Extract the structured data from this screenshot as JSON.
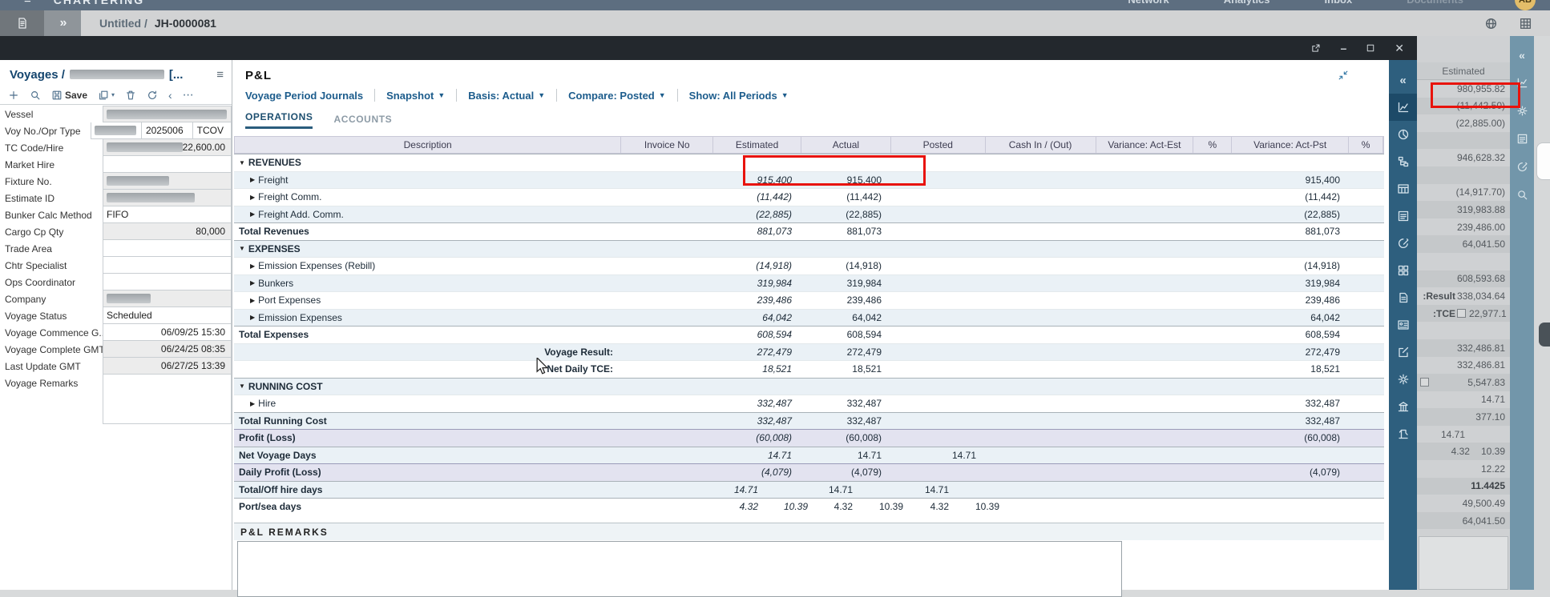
{
  "app": {
    "title": "CHARTERING",
    "menu": [
      {
        "label": "Network",
        "dim": false
      },
      {
        "label": "Analytics",
        "dim": false
      },
      {
        "label": "Inbox",
        "dim": false
      },
      {
        "label": "Documents",
        "dim": true
      }
    ],
    "avatar": "AB"
  },
  "tabbar": {
    "breadcrumb_left": "Untitled /",
    "breadcrumb_right": "JH-0000081"
  },
  "modal_controls": [
    "open-in-new",
    "minimize",
    "maximize",
    "close"
  ],
  "voyages": {
    "title": "Voyages /",
    "title_suffix": "[...",
    "save_label": "Save",
    "toolbar_icons": [
      "add",
      "search",
      "save",
      "copy",
      "delete",
      "refresh",
      "back",
      "more"
    ],
    "fields": [
      {
        "label": "Vessel",
        "gray": true,
        "parts": [
          {
            "mask": 150
          }
        ]
      },
      {
        "label": "Voy No./Opr Type",
        "gray": false,
        "parts": [
          {
            "mask": 52
          },
          {
            "text": "2025006",
            "box": true
          },
          {
            "text": "TCOV",
            "box": true
          }
        ]
      },
      {
        "label": "TC Code/Hire",
        "gray": true,
        "parts": [
          {
            "mask": 95
          },
          {
            "text": "22,600.00",
            "right": true
          }
        ]
      },
      {
        "label": "Market Hire",
        "gray": false,
        "parts": []
      },
      {
        "label": "Fixture No.",
        "gray": true,
        "parts": [
          {
            "mask": 78
          }
        ]
      },
      {
        "label": "Estimate ID",
        "gray": true,
        "parts": [
          {
            "mask": 110
          }
        ]
      },
      {
        "label": "Bunker Calc Method",
        "gray": false,
        "parts": [
          {
            "text": "FIFO"
          }
        ]
      },
      {
        "label": "Cargo Cp Qty",
        "gray": true,
        "parts": [
          {
            "text": "80,000",
            "right": true
          }
        ]
      },
      {
        "label": "Trade Area",
        "gray": false,
        "parts": []
      },
      {
        "label": "Chtr Specialist",
        "gray": false,
        "parts": []
      },
      {
        "label": "Ops Coordinator",
        "gray": false,
        "parts": []
      },
      {
        "label": "Company",
        "gray": true,
        "parts": [
          {
            "mask": 55
          }
        ]
      },
      {
        "label": "Voyage Status",
        "gray": false,
        "parts": [
          {
            "text": "Scheduled"
          }
        ]
      },
      {
        "label": "Voyage Commence G...",
        "gray": false,
        "parts": [
          {
            "text": "06/09/25 15:30",
            "right": true
          }
        ]
      },
      {
        "label": "Voyage Complete GMT",
        "gray": true,
        "parts": [
          {
            "text": "06/24/25 08:35",
            "right": true
          }
        ]
      },
      {
        "label": "Last Update GMT",
        "gray": true,
        "parts": [
          {
            "text": "06/27/25 13:39",
            "right": true
          }
        ]
      },
      {
        "label": "Voyage Remarks",
        "gray": false,
        "tall": true,
        "parts": []
      }
    ]
  },
  "pnl": {
    "title": "P&L",
    "menu": [
      {
        "label": "Voyage Period Journals",
        "caret": false
      },
      {
        "label": "Snapshot",
        "caret": true
      },
      {
        "label": "Basis: Actual",
        "caret": true
      },
      {
        "label": "Compare: Posted",
        "caret": true
      },
      {
        "label": "Show: All Periods",
        "caret": true
      }
    ],
    "tabs": [
      "OPERATIONS",
      "ACCOUNTS"
    ],
    "active_tab": "OPERATIONS",
    "columns": [
      "Description",
      "Invoice No",
      "Estimated",
      "Actual",
      "Posted",
      "Cash In / (Out)",
      "Variance: Act-Est",
      "%",
      "Variance: Act-Pst",
      "%"
    ],
    "rows": [
      {
        "type": "section",
        "label": "REVENUES",
        "shade": false
      },
      {
        "type": "item",
        "label": "Freight",
        "est": "915,400",
        "act": "915,400",
        "var_pst": "915,400",
        "shade": true
      },
      {
        "type": "item",
        "label": "Freight Comm.",
        "est": "(11,442)",
        "act": "(11,442)",
        "var_pst": "(11,442)",
        "shade": false
      },
      {
        "type": "item",
        "label": "Freight Add. Comm.",
        "est": "(22,885)",
        "act": "(22,885)",
        "var_pst": "(22,885)",
        "shade": true
      },
      {
        "type": "total",
        "label": "Total Revenues",
        "est": "881,073",
        "act": "881,073",
        "var_pst": "881,073",
        "shade": false
      },
      {
        "type": "section",
        "label": "EXPENSES",
        "shade": true
      },
      {
        "type": "item",
        "label": "Emission Expenses (Rebill)",
        "est": "(14,918)",
        "act": "(14,918)",
        "var_pst": "(14,918)",
        "shade": false
      },
      {
        "type": "item",
        "label": "Bunkers",
        "est": "319,984",
        "act": "319,984",
        "var_pst": "319,984",
        "shade": true
      },
      {
        "type": "item",
        "label": "Port Expenses",
        "est": "239,486",
        "act": "239,486",
        "var_pst": "239,486",
        "shade": false
      },
      {
        "type": "item",
        "label": "Emission Expenses",
        "est": "64,042",
        "act": "64,042",
        "var_pst": "64,042",
        "shade": true
      },
      {
        "type": "total",
        "label": "Total Expenses",
        "est": "608,594",
        "act": "608,594",
        "var_pst": "608,594",
        "shade": false
      },
      {
        "type": "summary",
        "label": "Voyage Result:",
        "est": "272,479",
        "act": "272,479",
        "var_pst": "272,479",
        "shade": true
      },
      {
        "type": "summary",
        "label": "Net Daily TCE:",
        "est": "18,521",
        "act": "18,521",
        "var_pst": "18,521",
        "shade": false
      },
      {
        "type": "section",
        "label": "RUNNING COST",
        "shade": true
      },
      {
        "type": "item",
        "label": "Hire",
        "est": "332,487",
        "act": "332,487",
        "var_pst": "332,487",
        "shade": false
      },
      {
        "type": "total",
        "label": "Total Running Cost",
        "est": "332,487",
        "act": "332,487",
        "var_pst": "332,487",
        "shade": true
      },
      {
        "type": "profit",
        "label": "Profit (Loss)",
        "est": "(60,008)",
        "act": "(60,008)",
        "var_pst": "(60,008)"
      },
      {
        "type": "total",
        "label": "Net Voyage Days",
        "est": "14.71",
        "act": "14.71",
        "posted": "14.71",
        "shade": true
      },
      {
        "type": "profit",
        "label": "Daily Profit (Loss)",
        "est": "(4,079)",
        "act": "(4,079)",
        "var_pst": "(4,079)"
      },
      {
        "type": "days",
        "label": "Total/Off hire days",
        "cells": [
          "14.71",
          "",
          "14.71",
          "",
          "14.71",
          ""
        ],
        "shade": true
      },
      {
        "type": "days",
        "label": "Port/sea days",
        "cells": [
          "4.32",
          "10.39",
          "4.32",
          "10.39",
          "4.32",
          "10.39"
        ],
        "shade": false
      }
    ],
    "remarks_label": "P&L REMARKS"
  },
  "modal_strip_icons": [
    "chevrons-left",
    "chart",
    "pie",
    "hierarchy",
    "table",
    "checklist",
    "edit-circle",
    "grid",
    "document",
    "person-card",
    "compose",
    "gear",
    "bank",
    "crane"
  ],
  "modal_strip_active": "chart",
  "right_strip_icons": [
    "chevrons-left",
    "chart",
    "gear",
    "checklist",
    "edit-circle",
    "search"
  ],
  "right_panel": {
    "header": "Estimated",
    "rows": [
      {
        "v": "980,955.82"
      },
      {
        "v": "(11,442.50)"
      },
      {
        "v": "(22,885.00)"
      },
      {},
      {
        "v": "946,628.32"
      },
      {},
      {
        "v": "(14,917.70)"
      },
      {
        "v": "319,983.88"
      },
      {
        "v": "239,486.00"
      },
      {
        "v": "64,041.50"
      },
      {},
      {
        "v": "608,593.68"
      },
      {
        "label": "Result:",
        "v": "338,034.64"
      },
      {
        "label": "TCE:",
        "cb": true,
        "v": "22,977.1"
      },
      {},
      {
        "v": "332,486.81"
      },
      {
        "v": "332,486.81"
      },
      {
        "cb": true,
        "v": "5,547.83"
      },
      {
        "v": "14.71"
      },
      {
        "v": "377.10"
      },
      {
        "v": "14.71",
        "shift": 50
      },
      {
        "v2": "4.32",
        "v": "10.39"
      },
      {
        "v": "12.22"
      },
      {
        "v": "11.4425",
        "em": true
      },
      {
        "v": "49,500.49"
      },
      {
        "v": "64,041.50"
      }
    ]
  },
  "annotations": {
    "highlight_color": "#e8130c"
  }
}
